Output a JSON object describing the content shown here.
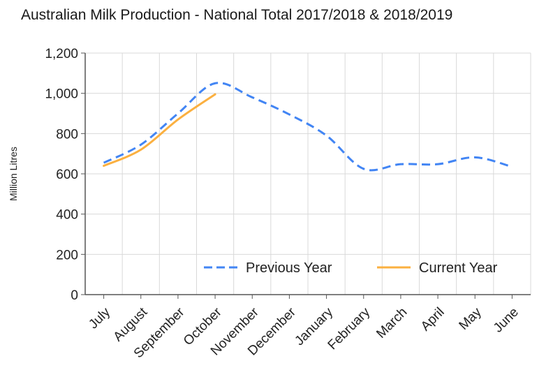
{
  "chart_data": {
    "type": "line",
    "title": "Australian Milk Production - National Total 2017/2018 & 2018/2019",
    "xlabel": "",
    "ylabel": "Million Litres",
    "categories": [
      "July",
      "August",
      "September",
      "October",
      "November",
      "December",
      "January",
      "February",
      "March",
      "April",
      "May",
      "June"
    ],
    "ylim": [
      0,
      1200
    ],
    "yticks": [
      "0",
      "200",
      "400",
      "600",
      "800",
      "1,000",
      "1,200"
    ],
    "grid": true,
    "legend_position": "bottom-right",
    "series": [
      {
        "name": "Previous Year",
        "color": "#4285f4",
        "style": "dashed",
        "values": [
          655,
          745,
          900,
          1050,
          980,
          895,
          790,
          625,
          648,
          648,
          682,
          635
        ]
      },
      {
        "name": "Current Year",
        "color": "#fbb040",
        "style": "solid",
        "values": [
          640,
          720,
          870,
          995,
          null,
          null,
          null,
          null,
          null,
          null,
          null,
          null
        ]
      }
    ]
  }
}
